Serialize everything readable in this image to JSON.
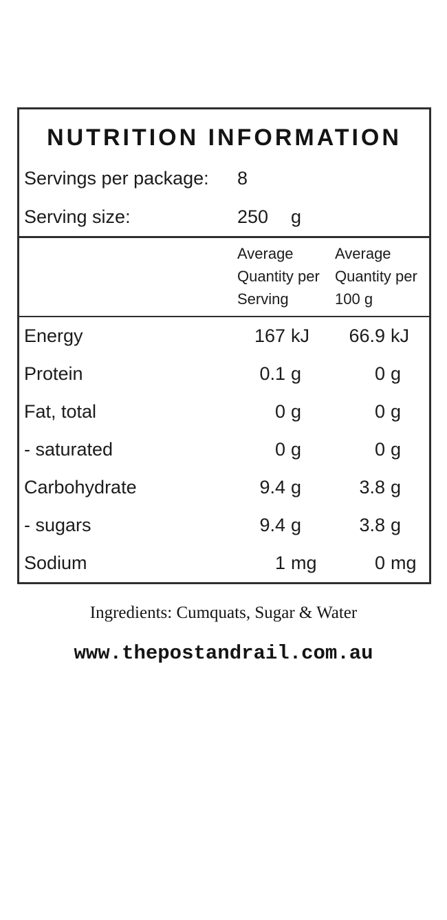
{
  "panel": {
    "title": "NUTRITION INFORMATION",
    "servings_per_package": {
      "label": "Servings per package:",
      "value": "8"
    },
    "serving_size": {
      "label": "Serving size:",
      "value": "250",
      "unit": "g"
    },
    "columns": {
      "per_serving": {
        "line1": "Average",
        "line2": "Quantity per",
        "line3": "Serving"
      },
      "per_100g": {
        "line1": "Average",
        "line2": "Quantity per",
        "line3": "100 g"
      }
    },
    "rows": [
      {
        "name": "Energy",
        "serving_value": "167",
        "serving_unit": "kJ",
        "per100_value": "66.9",
        "per100_unit": "kJ"
      },
      {
        "name": "Protein",
        "serving_value": "0.1",
        "serving_unit": "g",
        "per100_value": "0",
        "per100_unit": "g"
      },
      {
        "name": "Fat, total",
        "serving_value": "0",
        "serving_unit": "g",
        "per100_value": "0",
        "per100_unit": "g"
      },
      {
        "name": "- saturated",
        "serving_value": "0",
        "serving_unit": "g",
        "per100_value": "0",
        "per100_unit": "g"
      },
      {
        "name": "Carbohydrate",
        "serving_value": "9.4",
        "serving_unit": "g",
        "per100_value": "3.8",
        "per100_unit": "g"
      },
      {
        "name": "- sugars",
        "serving_value": "9.4",
        "serving_unit": "g",
        "per100_value": "3.8",
        "per100_unit": "g"
      },
      {
        "name": "Sodium",
        "serving_value": "1",
        "serving_unit": "mg",
        "per100_value": "0",
        "per100_unit": "mg"
      }
    ]
  },
  "footer": {
    "ingredients": "Ingredients: Cumquats, Sugar & Water",
    "website": "www.thepostandrail.com.au"
  },
  "colors": {
    "text": "#1b1b1b",
    "border": "#2e2e2e",
    "background": "#ffffff"
  }
}
